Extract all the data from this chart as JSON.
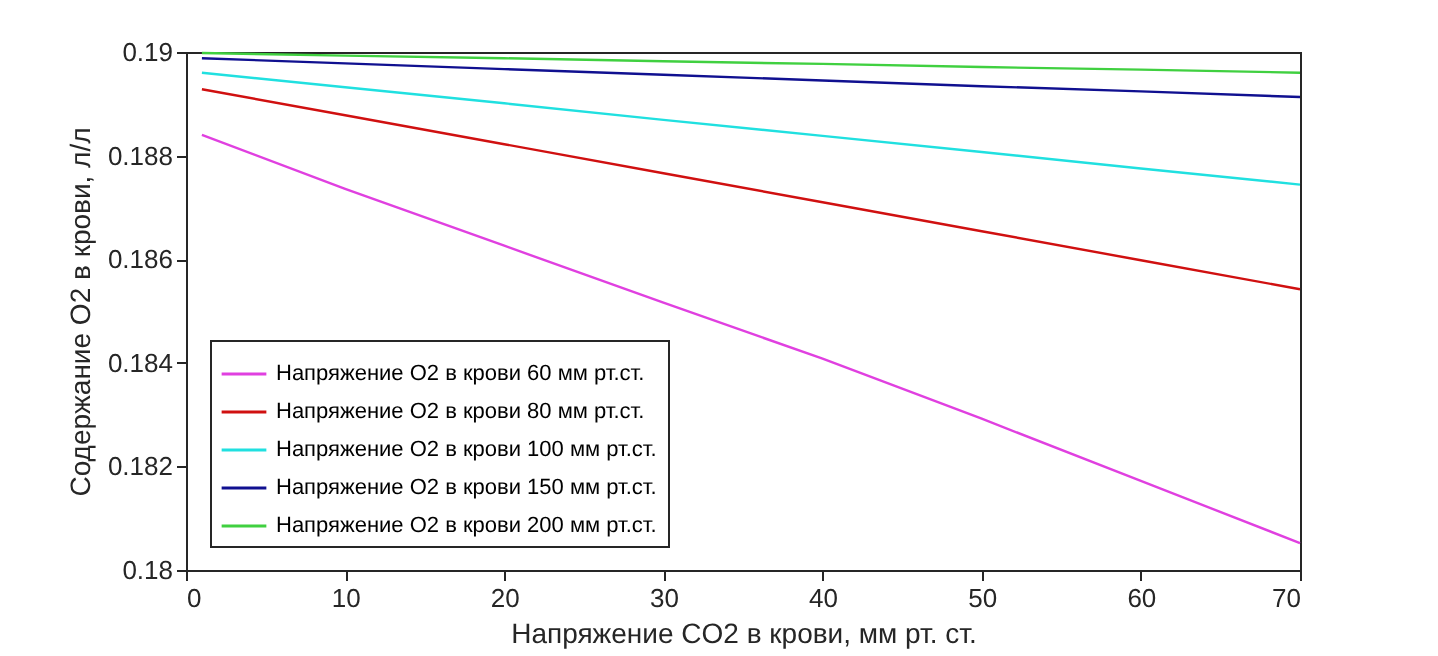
{
  "chart_data": {
    "type": "line",
    "xlabel": "Напряжение CO2 в крови, мм рт. ст.",
    "ylabel": "Содержание O2 в крови, л/л",
    "x": [
      1,
      10,
      20,
      30,
      40,
      50,
      60,
      70
    ],
    "series": [
      {
        "name": "Напряжение O2 в крови 60 мм рт.ст.",
        "color": "#e040e0",
        "values": [
          0.1884,
          0.18736,
          0.18626,
          0.18516,
          0.18408,
          0.18292,
          0.18172,
          0.18052
        ]
      },
      {
        "name": "Напряжение O2 в крови 80 мм рт.ст.",
        "color": "#d01010",
        "values": [
          0.18928,
          0.18878,
          0.18822,
          0.18766,
          0.1871,
          0.18654,
          0.18598,
          0.18542
        ]
      },
      {
        "name": "Напряжение O2 в крови 100 мм рт.ст.",
        "color": "#20e0e0",
        "values": [
          0.1896,
          0.18932,
          0.18901,
          0.18869,
          0.18838,
          0.18807,
          0.18775,
          0.18744
        ]
      },
      {
        "name": "Напряжение O2 в крови 150 мм рт.ст.",
        "color": "#101090",
        "values": [
          0.18988,
          0.18978,
          0.18967,
          0.18956,
          0.18945,
          0.18934,
          0.18924,
          0.18913
        ]
      },
      {
        "name": "Напряжение O2 в крови 200 мм рт.ст.",
        "color": "#40d040",
        "values": [
          0.18998,
          0.18993,
          0.18988,
          0.18982,
          0.18977,
          0.18971,
          0.18966,
          0.1896
        ]
      }
    ],
    "xlim": [
      0,
      70
    ],
    "xticks": [
      0,
      10,
      20,
      30,
      40,
      50,
      60,
      70
    ],
    "ylim": [
      0.18,
      0.19
    ],
    "yticks": [
      0.18,
      0.182,
      0.184,
      0.186,
      0.188,
      0.19
    ],
    "legend": "bottom left",
    "grid": false,
    "marker": "none",
    "line_style": "solid"
  }
}
